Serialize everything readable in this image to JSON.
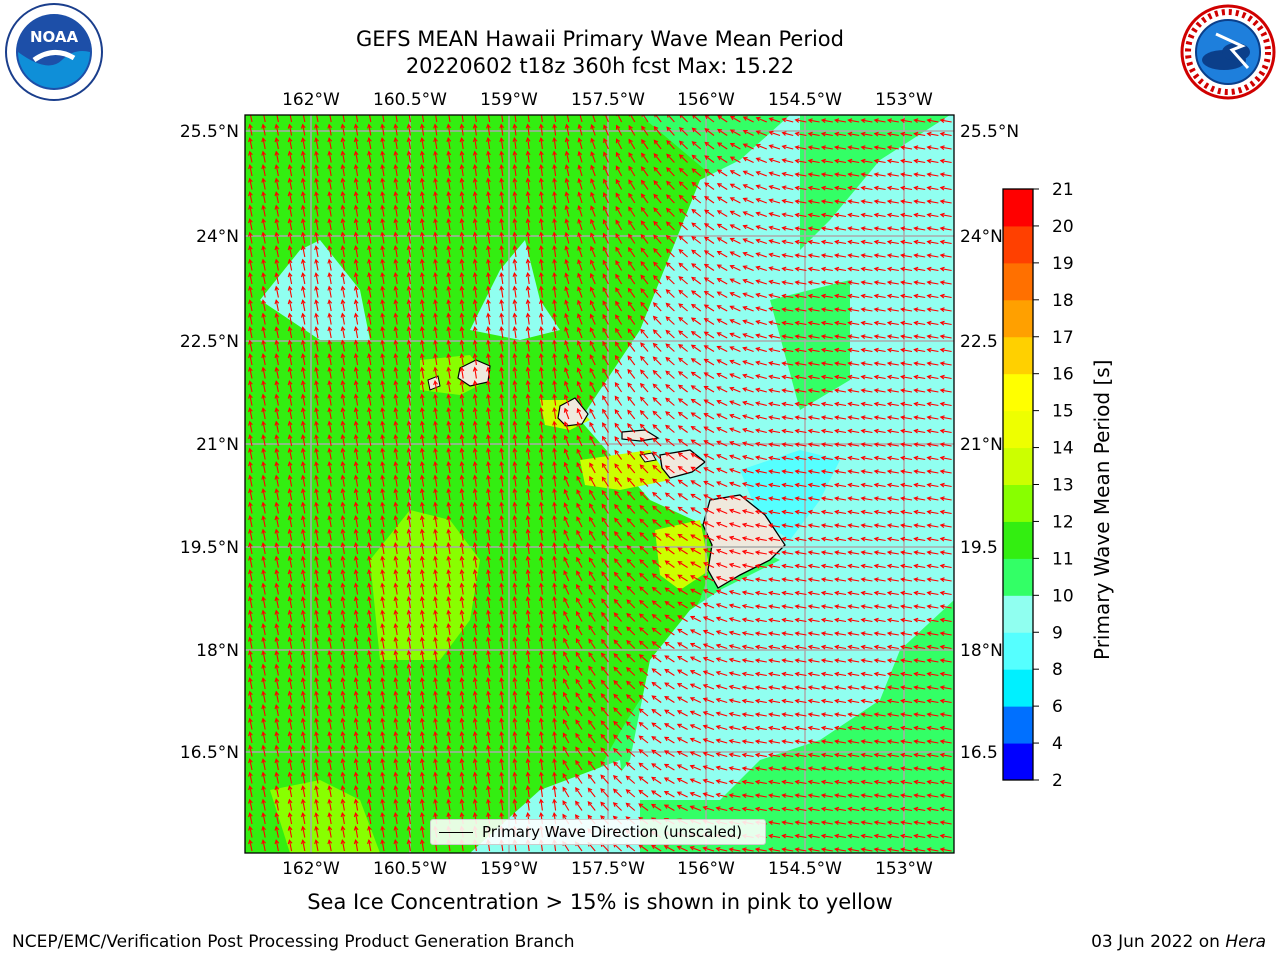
{
  "header": {
    "title_line1": "GEFS MEAN Hawaii Primary Wave Mean Period",
    "title_line2": "20220602 t18z 360h fcst   Max: 15.22"
  },
  "logos": {
    "left": "noaa-logo",
    "right": "nws-logo",
    "right_ring_text": "NATIONAL WEATHER SERVICE"
  },
  "map": {
    "lon_ticks": [
      "162°W",
      "160.5°W",
      "159°W",
      "157.5°W",
      "156°W",
      "154.5°W",
      "153°W"
    ],
    "lat_ticks_left": [
      "25.5°N",
      "24°N",
      "22.5°N",
      "21°N",
      "19.5°N",
      "18°N",
      "16.5°N"
    ],
    "lat_ticks_right": [
      "25.5°N",
      "24°N",
      "22.5",
      "21°N",
      "19.5",
      "18°N",
      "16.5"
    ],
    "land_color": "#efe9dd",
    "arrow_color": "#ff0000",
    "grid_color": "#aaaaaa"
  },
  "legend": {
    "label": "Primary Wave Direction (unscaled)"
  },
  "colorbar": {
    "label": "Primary Wave Mean Period [s]",
    "ticks": [
      "2",
      "4",
      "6",
      "8",
      "9",
      "10",
      "11",
      "12",
      "13",
      "14",
      "15",
      "16",
      "17",
      "18",
      "19",
      "20",
      "21"
    ],
    "colors": [
      "#0000ff",
      "#0070ff",
      "#00f0ff",
      "#55ffff",
      "#90fff0",
      "#33ff66",
      "#33ee11",
      "#88ff00",
      "#ccff00",
      "#eeff00",
      "#ffff00",
      "#ffd000",
      "#ffa000",
      "#ff7000",
      "#ff4000",
      "#ff0000"
    ]
  },
  "caption": "Sea Ice Concentration > 15% is shown in pink to yellow",
  "footer": {
    "left": "NCEP/EMC/Verification Post Processing Product Generation Branch",
    "right_date": "03 Jun 2022 on ",
    "right_machine": "Hera"
  }
}
